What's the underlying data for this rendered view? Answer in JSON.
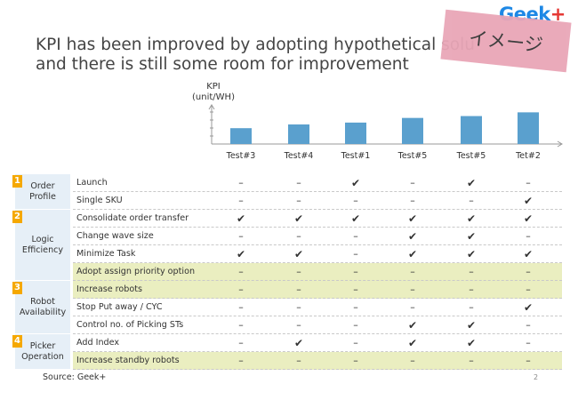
{
  "header": {
    "logo_main": "Geek",
    "logo_plus": "+",
    "title_line1": "KPI has been improved by adopting hypothetical solu",
    "title_line2": "and there is still some room for improvement",
    "stamp": "イメージ"
  },
  "chart_data": {
    "type": "bar",
    "ylabel": "KPI\n(unit/WH)",
    "categories": [
      "Test#3",
      "Test#4",
      "Test#1",
      "Test#5",
      "Test#5",
      "Tet#2"
    ],
    "values": [
      17,
      21,
      23,
      28,
      30,
      34
    ],
    "ylim": [
      0,
      42
    ],
    "bar_color": "#5aa0ce",
    "axis_color": "#999999"
  },
  "table": {
    "groups": [
      {
        "number": "1",
        "label_lines": [
          "Order",
          "Profile"
        ],
        "rows": [
          0,
          1
        ]
      },
      {
        "number": "2",
        "label_lines": [
          "Logic",
          "Efficiency"
        ],
        "rows": [
          2,
          3,
          4,
          5
        ]
      },
      {
        "number": "3",
        "label_lines": [
          "Robot",
          "Availability"
        ],
        "rows": [
          6,
          7,
          8
        ]
      },
      {
        "number": "4",
        "label_lines": [
          "Picker",
          "Operation"
        ],
        "rows": [
          9,
          10
        ]
      }
    ],
    "rows": [
      {
        "label": "Launch",
        "highlight": false,
        "marks": [
          "–",
          "–",
          "✔",
          "–",
          "✔",
          "–"
        ]
      },
      {
        "label": "Single SKU",
        "highlight": false,
        "marks": [
          "–",
          "–",
          "–",
          "–",
          "–",
          "✔"
        ]
      },
      {
        "label": "Consolidate order transfer",
        "highlight": false,
        "marks": [
          "✔",
          "✔",
          "✔",
          "✔",
          "✔",
          "✔"
        ]
      },
      {
        "label": "Change wave size",
        "highlight": false,
        "marks": [
          "–",
          "–",
          "–",
          "✔",
          "✔",
          "–"
        ]
      },
      {
        "label": "Minimize Task",
        "highlight": false,
        "marks": [
          "✔",
          "✔",
          "–",
          "✔",
          "✔",
          "✔"
        ]
      },
      {
        "label": "Adopt assign priority option",
        "highlight": true,
        "marks": [
          "–",
          "–",
          "–",
          "–",
          "–",
          "–"
        ]
      },
      {
        "label": "Increase robots",
        "highlight": true,
        "marks": [
          "–",
          "–",
          "–",
          "–",
          "–",
          "–"
        ]
      },
      {
        "label": "Stop Put away / CYC",
        "highlight": false,
        "marks": [
          "–",
          "–",
          "–",
          "–",
          "–",
          "✔"
        ]
      },
      {
        "label": "Control no. of Picking STs",
        "highlight": false,
        "marks": [
          "–",
          "–",
          "–",
          "✔",
          "✔",
          "–"
        ]
      },
      {
        "label": "Add Index",
        "highlight": false,
        "marks": [
          "–",
          "✔",
          "–",
          "✔",
          "✔",
          "–"
        ]
      },
      {
        "label": "Increase standby robots",
        "highlight": true,
        "marks": [
          "–",
          "–",
          "–",
          "–",
          "–",
          "–"
        ]
      }
    ],
    "highlight_color": "#eaeec0",
    "group_color": "#e6eff7",
    "number_color": "#f5a800"
  },
  "footer": {
    "source": "Source: Geek+",
    "page": "2"
  }
}
